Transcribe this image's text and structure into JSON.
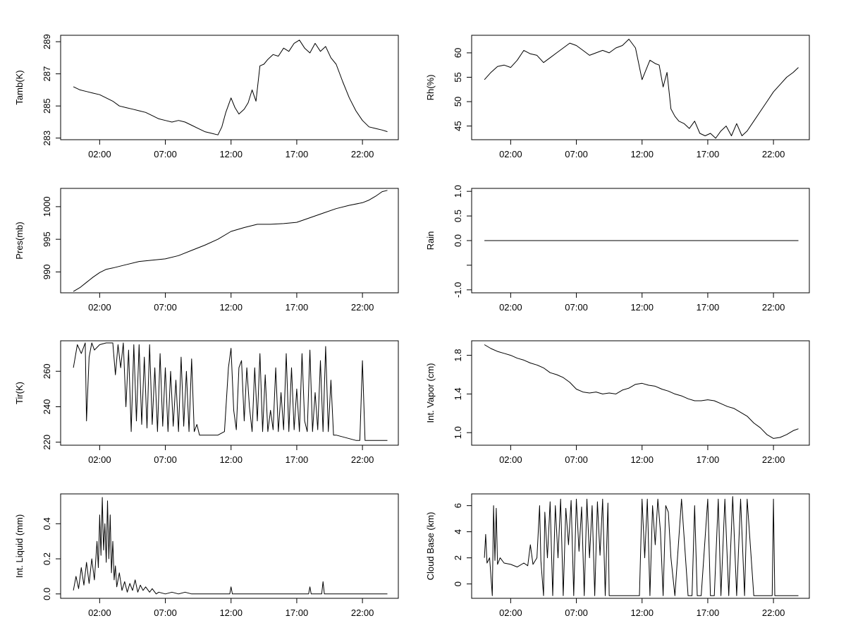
{
  "chart_data": [
    {
      "type": "line",
      "ylabel": "Tamb(K)",
      "xticks": [
        "02:00",
        "07:00",
        "12:00",
        "17:00",
        "22:00"
      ],
      "xlim": [
        -0.97,
        24.73
      ],
      "yticks": [
        283,
        285,
        287,
        289
      ],
      "ylim": [
        282.9,
        289.4
      ],
      "series": [
        {
          "x": [
            0.0,
            0.5,
            1.0,
            1.5,
            2.0,
            2.5,
            3.0,
            3.5,
            4.0,
            4.5,
            5.0,
            5.5,
            6.0,
            6.5,
            7.0,
            7.5,
            8.0,
            8.5,
            9.0,
            9.5,
            10.0,
            10.5,
            11.0,
            11.3,
            11.6,
            12.0,
            12.3,
            12.6,
            13.0,
            13.3,
            13.6,
            13.9,
            14.2,
            14.5,
            14.8,
            15.2,
            15.6,
            16.0,
            16.4,
            16.8,
            17.2,
            17.6,
            18.0,
            18.4,
            18.8,
            19.2,
            19.6,
            20.0,
            20.5,
            21.0,
            21.5,
            22.0,
            22.5,
            23.0,
            23.5,
            23.9
          ],
          "y": [
            286.2,
            286.0,
            285.9,
            285.8,
            285.7,
            285.5,
            285.3,
            285.0,
            284.9,
            284.8,
            284.7,
            284.6,
            284.4,
            284.2,
            284.1,
            284.0,
            284.1,
            284.0,
            283.8,
            283.6,
            283.4,
            283.3,
            283.2,
            283.7,
            284.6,
            285.5,
            284.9,
            284.5,
            284.8,
            285.2,
            286.0,
            285.3,
            287.5,
            287.6,
            287.9,
            288.2,
            288.1,
            288.6,
            288.4,
            288.9,
            289.1,
            288.6,
            288.3,
            288.9,
            288.4,
            288.7,
            288.0,
            287.6,
            286.5,
            285.5,
            284.7,
            284.1,
            283.7,
            283.6,
            283.5,
            283.4
          ]
        }
      ]
    },
    {
      "type": "line",
      "ylabel": "Rh(%)",
      "xticks": [
        "02:00",
        "07:00",
        "12:00",
        "17:00",
        "22:00"
      ],
      "xlim": [
        -0.97,
        24.73
      ],
      "yticks": [
        45,
        50,
        55,
        60
      ],
      "ylim": [
        42.2,
        63.6
      ],
      "series": [
        {
          "x": [
            0.0,
            0.5,
            1.0,
            1.5,
            2.0,
            2.5,
            3.0,
            3.5,
            4.0,
            4.5,
            5.0,
            5.5,
            6.0,
            6.5,
            7.0,
            7.5,
            8.0,
            8.5,
            9.0,
            9.5,
            10.0,
            10.5,
            11.0,
            11.5,
            12.0,
            12.3,
            12.6,
            13.0,
            13.3,
            13.6,
            13.9,
            14.2,
            14.5,
            14.8,
            15.2,
            15.6,
            16.0,
            16.4,
            16.8,
            17.2,
            17.6,
            18.0,
            18.4,
            18.8,
            19.2,
            19.6,
            20.0,
            20.5,
            21.0,
            21.5,
            22.0,
            22.5,
            23.0,
            23.5,
            23.9
          ],
          "y": [
            54.5,
            56.0,
            57.2,
            57.5,
            57.0,
            58.5,
            60.5,
            59.8,
            59.5,
            58.0,
            59.0,
            60.0,
            61.0,
            62.0,
            61.5,
            60.5,
            59.5,
            60.0,
            60.5,
            60.0,
            61.0,
            61.5,
            62.8,
            61.0,
            54.5,
            56.5,
            58.5,
            57.8,
            57.5,
            53.0,
            56.0,
            48.5,
            47.0,
            46.0,
            45.5,
            44.5,
            46.0,
            43.5,
            43.0,
            43.5,
            42.5,
            44.0,
            45.0,
            43.0,
            45.5,
            43.0,
            44.0,
            46.0,
            48.0,
            50.0,
            52.0,
            53.5,
            55.0,
            56.0,
            57.0
          ]
        }
      ]
    },
    {
      "type": "line",
      "ylabel": "Pres(mb)",
      "xticks": [
        "02:00",
        "07:00",
        "12:00",
        "17:00",
        "22:00"
      ],
      "xlim": [
        -0.97,
        24.73
      ],
      "yticks": [
        990,
        995,
        1000
      ],
      "ylim": [
        986.8,
        1002.8
      ],
      "series": [
        {
          "x": [
            0.0,
            0.5,
            1.0,
            1.5,
            2.0,
            2.5,
            3.0,
            4.0,
            5.0,
            6.0,
            7.0,
            8.0,
            9.0,
            10.0,
            11.0,
            12.0,
            13.0,
            14.0,
            15.0,
            16.0,
            17.0,
            18.0,
            19.0,
            20.0,
            21.0,
            22.0,
            22.5,
            23.0,
            23.5,
            23.9
          ],
          "y": [
            987.0,
            987.6,
            988.4,
            989.2,
            989.9,
            990.4,
            990.6,
            991.1,
            991.6,
            991.8,
            992.0,
            992.5,
            993.3,
            994.1,
            995.0,
            996.2,
            996.8,
            997.3,
            997.3,
            997.4,
            997.6,
            998.3,
            999.0,
            999.7,
            1000.2,
            1000.6,
            1001.0,
            1001.6,
            1002.3,
            1002.5
          ]
        }
      ]
    },
    {
      "type": "line",
      "ylabel": "Rain",
      "xticks": [
        "02:00",
        "07:00",
        "12:00",
        "17:00",
        "22:00"
      ],
      "xlim": [
        -0.97,
        24.73
      ],
      "yticks": [
        -1.0,
        -0.5,
        0.0,
        0.5,
        1.0
      ],
      "ytick_labels": [
        "-1.0",
        "",
        "0.0",
        "0.5",
        "1.0"
      ],
      "ylim": [
        -1.06,
        1.06
      ],
      "series": [
        {
          "x": [
            0.0,
            23.9
          ],
          "y": [
            0.0,
            0.0
          ]
        }
      ]
    },
    {
      "type": "line",
      "ylabel": "Tir(K)",
      "xticks": [
        "02:00",
        "07:00",
        "12:00",
        "17:00",
        "22:00"
      ],
      "xlim": [
        -0.97,
        24.73
      ],
      "yticks": [
        220,
        240,
        260
      ],
      "ylim": [
        218.3,
        277.2
      ],
      "series": [
        {
          "x": [
            0.0,
            0.3,
            0.6,
            0.9,
            1.0,
            1.2,
            1.4,
            1.6,
            2.0,
            2.5,
            3.0,
            3.2,
            3.4,
            3.6,
            3.8,
            4.0,
            4.2,
            4.4,
            4.6,
            4.8,
            5.0,
            5.2,
            5.4,
            5.6,
            5.8,
            6.0,
            6.2,
            6.4,
            6.6,
            6.8,
            7.0,
            7.2,
            7.4,
            7.6,
            7.8,
            8.0,
            8.2,
            8.4,
            8.6,
            8.8,
            9.0,
            9.2,
            9.4,
            9.6,
            10.0,
            10.5,
            11.0,
            11.5,
            11.8,
            12.0,
            12.2,
            12.4,
            12.6,
            12.8,
            13.0,
            13.2,
            13.4,
            13.6,
            13.8,
            14.0,
            14.2,
            14.4,
            14.6,
            14.8,
            15.0,
            15.2,
            15.4,
            15.6,
            15.8,
            16.0,
            16.2,
            16.4,
            16.6,
            16.8,
            17.0,
            17.2,
            17.4,
            17.6,
            17.8,
            18.0,
            18.2,
            18.4,
            18.6,
            18.8,
            19.0,
            19.2,
            19.4,
            19.6,
            19.8,
            20.0,
            20.5,
            21.0,
            21.5,
            21.8,
            22.0,
            22.2,
            22.5,
            23.0,
            23.5,
            23.9
          ],
          "y": [
            262,
            275,
            270,
            276,
            232,
            268,
            276,
            272,
            275,
            276,
            276,
            258,
            275,
            262,
            276,
            240,
            272,
            226,
            275,
            232,
            275,
            230,
            268,
            228,
            275,
            230,
            262,
            226,
            270,
            229,
            262,
            226,
            260,
            229,
            255,
            226,
            268,
            229,
            260,
            226,
            267,
            226,
            230,
            224,
            224,
            224,
            224,
            226,
            262,
            273,
            238,
            227,
            262,
            266,
            232,
            262,
            240,
            226,
            262,
            232,
            270,
            226,
            258,
            226,
            238,
            227,
            262,
            226,
            248,
            227,
            270,
            226,
            262,
            227,
            250,
            226,
            270,
            232,
            226,
            272,
            226,
            248,
            227,
            266,
            226,
            274,
            226,
            255,
            224,
            224,
            223,
            222,
            221,
            221,
            266,
            221,
            221,
            221,
            221,
            221
          ]
        }
      ]
    },
    {
      "type": "line",
      "ylabel": "Int. Vapor (cm)",
      "xticks": [
        "02:00",
        "07:00",
        "12:00",
        "17:00",
        "22:00"
      ],
      "xlim": [
        -0.97,
        24.73
      ],
      "yticks": [
        1.0,
        1.4,
        1.8
      ],
      "ylim": [
        0.87,
        1.95
      ],
      "series": [
        {
          "x": [
            0.0,
            0.5,
            1.0,
            1.5,
            2.0,
            2.5,
            3.0,
            3.5,
            4.0,
            4.5,
            5.0,
            5.5,
            6.0,
            6.5,
            7.0,
            7.5,
            8.0,
            8.5,
            9.0,
            9.5,
            10.0,
            10.5,
            11.0,
            11.5,
            12.0,
            12.5,
            13.0,
            13.5,
            14.0,
            14.5,
            15.0,
            15.5,
            16.0,
            16.5,
            17.0,
            17.5,
            18.0,
            18.5,
            19.0,
            19.5,
            20.0,
            20.5,
            21.0,
            21.5,
            22.0,
            22.5,
            23.0,
            23.5,
            23.9
          ],
          "y": [
            1.91,
            1.87,
            1.84,
            1.82,
            1.8,
            1.77,
            1.75,
            1.72,
            1.7,
            1.67,
            1.62,
            1.6,
            1.57,
            1.52,
            1.45,
            1.42,
            1.41,
            1.42,
            1.4,
            1.41,
            1.4,
            1.44,
            1.46,
            1.5,
            1.51,
            1.49,
            1.48,
            1.45,
            1.43,
            1.4,
            1.38,
            1.35,
            1.33,
            1.33,
            1.34,
            1.33,
            1.3,
            1.27,
            1.25,
            1.21,
            1.17,
            1.1,
            1.05,
            0.98,
            0.94,
            0.95,
            0.98,
            1.02,
            1.04
          ]
        }
      ]
    },
    {
      "type": "line",
      "ylabel": "Int. Liquid (mm)",
      "xticks": [
        "02:00",
        "07:00",
        "12:00",
        "17:00",
        "22:00"
      ],
      "xlim": [
        -0.97,
        24.73
      ],
      "yticks": [
        0.0,
        0.2,
        0.4
      ],
      "ylim": [
        -0.025,
        0.57
      ],
      "series": [
        {
          "x": [
            0.0,
            0.2,
            0.4,
            0.6,
            0.8,
            1.0,
            1.2,
            1.4,
            1.6,
            1.8,
            1.9,
            2.0,
            2.1,
            2.2,
            2.3,
            2.4,
            2.5,
            2.6,
            2.7,
            2.8,
            2.9,
            3.0,
            3.1,
            3.2,
            3.3,
            3.5,
            3.7,
            3.9,
            4.1,
            4.3,
            4.5,
            4.7,
            4.9,
            5.1,
            5.3,
            5.5,
            5.8,
            6.0,
            6.3,
            6.5,
            7.0,
            7.5,
            8.0,
            8.5,
            9.0,
            9.5,
            10.0,
            11.0,
            11.9,
            12.0,
            12.1,
            13.0,
            14.0,
            15.0,
            16.0,
            17.0,
            17.9,
            18.0,
            18.1,
            18.9,
            19.0,
            19.1,
            19.5,
            20.0,
            21.0,
            22.0,
            23.0,
            23.9
          ],
          "y": [
            0.02,
            0.1,
            0.03,
            0.15,
            0.05,
            0.18,
            0.06,
            0.2,
            0.08,
            0.3,
            0.15,
            0.45,
            0.22,
            0.55,
            0.25,
            0.4,
            0.18,
            0.53,
            0.2,
            0.45,
            0.12,
            0.3,
            0.08,
            0.16,
            0.04,
            0.12,
            0.02,
            0.07,
            0.01,
            0.06,
            0.02,
            0.08,
            0.01,
            0.05,
            0.02,
            0.04,
            0.01,
            0.03,
            0.0,
            0.01,
            0.0,
            0.01,
            0.0,
            0.01,
            0.0,
            0.0,
            0.0,
            0.0,
            0.0,
            0.04,
            0.0,
            0.0,
            0.0,
            0.0,
            0.0,
            0.0,
            0.0,
            0.04,
            0.0,
            0.0,
            0.07,
            0.0,
            0.0,
            0.0,
            0.0,
            0.0,
            0.0,
            0.0
          ]
        }
      ]
    },
    {
      "type": "line",
      "ylabel": "Cloud Base (km)",
      "xticks": [
        "02:00",
        "07:00",
        "12:00",
        "17:00",
        "22:00"
      ],
      "xlim": [
        -0.97,
        24.73
      ],
      "yticks": [
        0,
        2,
        4,
        6
      ],
      "ylim": [
        -1.1,
        6.9
      ],
      "series": [
        {
          "x": [
            0.0,
            0.1,
            0.2,
            0.4,
            0.6,
            0.7,
            0.8,
            0.9,
            1.0,
            1.2,
            1.5,
            2.0,
            2.5,
            3.0,
            3.3,
            3.5,
            3.7,
            4.0,
            4.2,
            4.3,
            4.5,
            4.6,
            4.8,
            5.0,
            5.2,
            5.4,
            5.6,
            5.8,
            6.0,
            6.2,
            6.4,
            6.6,
            6.8,
            7.0,
            7.2,
            7.4,
            7.6,
            7.8,
            8.0,
            8.2,
            8.4,
            8.6,
            8.8,
            9.0,
            9.2,
            9.4,
            9.5,
            10.0,
            11.0,
            11.8,
            12.0,
            12.2,
            12.4,
            12.6,
            12.8,
            13.0,
            13.2,
            13.4,
            13.6,
            13.8,
            14.0,
            14.2,
            14.5,
            15.0,
            15.5,
            15.8,
            16.0,
            16.2,
            16.5,
            17.0,
            17.2,
            17.5,
            17.8,
            18.0,
            18.3,
            18.6,
            18.9,
            19.2,
            19.5,
            19.8,
            20.0,
            20.5,
            21.0,
            21.5,
            21.9,
            22.0,
            22.1,
            22.5,
            23.0,
            23.9
          ],
          "y": [
            2.0,
            3.8,
            1.6,
            2.0,
            -0.9,
            6.0,
            1.8,
            5.8,
            1.5,
            2.0,
            1.6,
            1.5,
            1.3,
            1.6,
            1.4,
            3.0,
            1.5,
            2.0,
            6.0,
            1.8,
            -0.9,
            5.5,
            2.0,
            6.3,
            -0.9,
            6.0,
            2.0,
            6.5,
            -0.9,
            5.8,
            3.0,
            6.4,
            -0.9,
            6.5,
            2.5,
            5.9,
            -0.9,
            6.5,
            2.0,
            6.0,
            -0.9,
            6.3,
            2.2,
            6.5,
            -0.9,
            6.2,
            -0.9,
            -0.9,
            -0.9,
            -0.9,
            6.5,
            2.0,
            6.5,
            -0.9,
            6.0,
            3.0,
            6.5,
            4.0,
            -0.9,
            6.0,
            5.5,
            2.0,
            -0.9,
            6.5,
            -0.9,
            -0.9,
            6.0,
            -0.9,
            -0.9,
            6.5,
            -0.9,
            -0.9,
            6.5,
            -0.9,
            6.5,
            -0.9,
            6.7,
            -0.9,
            6.5,
            -0.9,
            6.5,
            -0.9,
            -0.9,
            -0.9,
            -0.9,
            6.5,
            -0.9,
            -0.9,
            -0.9,
            -0.9
          ]
        }
      ]
    }
  ]
}
